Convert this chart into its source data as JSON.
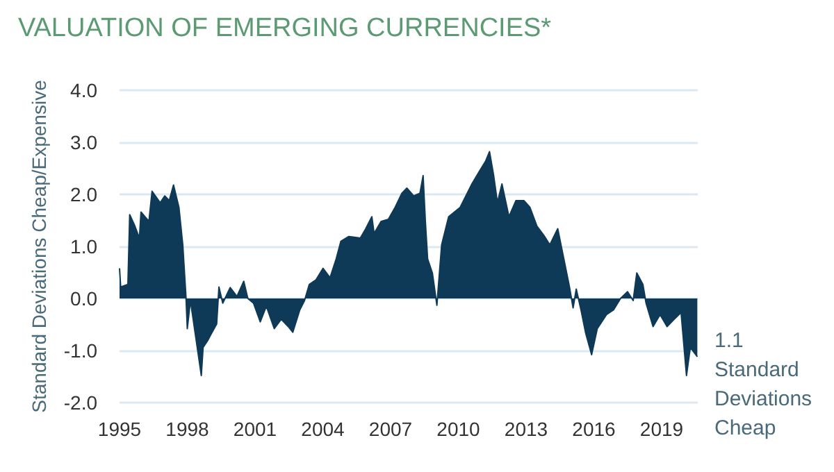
{
  "chart_data": {
    "type": "area",
    "title": "VALUATION OF EMERGING CURRENCIES*",
    "ylabel": "Standard Deviations Cheap/Expensive",
    "annotations": [
      "1.1 Standard Deviations Cheap"
    ],
    "x": [
      1995.0,
      1995.05,
      1995.37,
      1995.45,
      1995.68,
      1995.88,
      1995.95,
      1996.3,
      1996.44,
      1996.8,
      1997.0,
      1997.2,
      1997.39,
      1997.63,
      1997.8,
      1997.94,
      1998.0,
      1998.14,
      1998.35,
      1998.62,
      1998.7,
      1998.9,
      1999.07,
      1999.3,
      1999.4,
      1999.57,
      1999.9,
      2000.2,
      2000.5,
      2000.68,
      2000.93,
      2001.23,
      2001.5,
      2001.85,
      2002.16,
      2002.47,
      2002.67,
      2002.98,
      2003.19,
      2003.4,
      2003.7,
      2004.01,
      2004.32,
      2004.59,
      2004.8,
      2005.14,
      2005.66,
      2005.9,
      2006.17,
      2006.27,
      2006.58,
      2006.9,
      2007.2,
      2007.5,
      2007.72,
      2008.02,
      2008.3,
      2008.44,
      2008.54,
      2008.64,
      2008.85,
      2009.05,
      2009.26,
      2009.57,
      2010.08,
      2010.6,
      2010.9,
      2011.21,
      2011.38,
      2011.56,
      2011.73,
      2011.93,
      2012.24,
      2012.55,
      2012.9,
      2013.17,
      2013.48,
      2013.79,
      2014.05,
      2014.4,
      2014.67,
      2014.92,
      2015.08,
      2015.22,
      2015.43,
      2015.64,
      2015.9,
      2016.15,
      2016.56,
      2016.87,
      2017.18,
      2017.49,
      2017.74,
      2017.9,
      2018.17,
      2018.31,
      2018.62,
      2018.93,
      2019.24,
      2019.55,
      2019.86,
      2020.1,
      2020.27,
      2020.58
    ],
    "series": [
      {
        "color": "#0e3a57",
        "values": [
          0.58,
          0.22,
          0.27,
          1.61,
          1.39,
          1.16,
          1.66,
          1.48,
          2.06,
          1.84,
          1.97,
          1.88,
          2.18,
          1.75,
          1.03,
          0.04,
          -0.58,
          -0.04,
          -0.67,
          -1.48,
          -0.94,
          -0.81,
          -0.67,
          -0.49,
          0.22,
          -0.09,
          0.21,
          0.04,
          0.33,
          0,
          -0.09,
          -0.45,
          -0.15,
          -0.58,
          -0.4,
          -0.54,
          -0.65,
          -0.22,
          -0.04,
          0.27,
          0.36,
          0.58,
          0.4,
          0.76,
          1.1,
          1.19,
          1.16,
          1.34,
          1.57,
          1.25,
          1.48,
          1.52,
          1.75,
          2.02,
          2.12,
          1.97,
          2.02,
          2.36,
          1.48,
          0.76,
          0.49,
          -0.13,
          1.03,
          1.57,
          1.75,
          2.2,
          2.42,
          2.64,
          2.82,
          2.37,
          1.84,
          2.2,
          1.57,
          1.88,
          1.88,
          1.75,
          1.39,
          1.21,
          1.03,
          1.34,
          0.76,
          0.22,
          -0.18,
          0.18,
          -0.22,
          -0.67,
          -1.08,
          -0.58,
          -0.31,
          -0.22,
          0,
          0.13,
          -0.04,
          0.49,
          0.27,
          -0.09,
          -0.54,
          -0.31,
          -0.54,
          -0.4,
          -0.27,
          -1.48,
          -0.94,
          -1.12
        ]
      }
    ],
    "xlim": [
      1995,
      2020.6
    ],
    "xticks": [
      1995,
      1998,
      2001,
      2004,
      2007,
      2010,
      2013,
      2016,
      2019
    ],
    "ylim": [
      -2,
      4
    ],
    "yticks": [
      {
        "value": -2,
        "label": "-2.0"
      },
      {
        "value": -1,
        "label": "-1.0"
      },
      {
        "value": 0,
        "label": "0.0"
      },
      {
        "value": 1,
        "label": "1.0"
      },
      {
        "value": 2,
        "label": "2.0"
      },
      {
        "value": 3,
        "label": "3.0"
      },
      {
        "value": 4,
        "label": "4.0"
      }
    ],
    "grid": "y"
  }
}
